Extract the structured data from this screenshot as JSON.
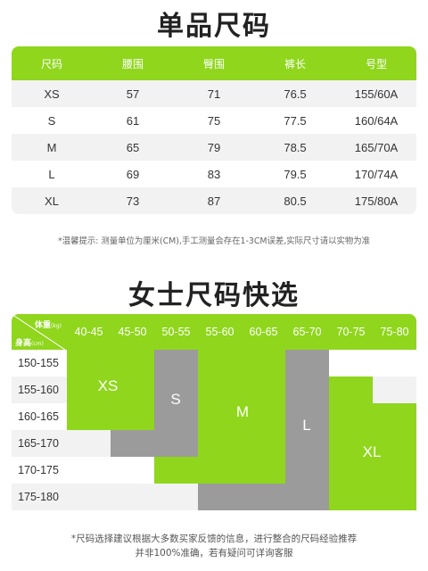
{
  "section1": {
    "title": "单品尺码",
    "headers": [
      "尺码",
      "腰围",
      "臀围",
      "裤长",
      "号型"
    ],
    "rows": [
      [
        "XS",
        "57",
        "71",
        "76.5",
        "155/60A"
      ],
      [
        "S",
        "61",
        "75",
        "77.5",
        "160/64A"
      ],
      [
        "M",
        "65",
        "79",
        "78.5",
        "165/70A"
      ],
      [
        "L",
        "69",
        "83",
        "79.5",
        "170/74A"
      ],
      [
        "XL",
        "73",
        "87",
        "80.5",
        "175/80A"
      ]
    ],
    "note": "*温馨提示: 测量单位为厘米(CM),手工测量会存在1-3CM误差,实际尺寸请以实物为准"
  },
  "section2": {
    "title": "女士尺码快选",
    "weight_label": "体重",
    "weight_unit": "(kg)",
    "height_label": "身高",
    "height_unit": "(cm)",
    "weights": [
      "40-45",
      "45-50",
      "50-55",
      "55-60",
      "60-65",
      "65-70",
      "70-75",
      "75-80"
    ],
    "heights": [
      "150-155",
      "155-160",
      "160-165",
      "165-170",
      "170-175",
      "175-180"
    ],
    "sizes": {
      "xs": "XS",
      "s": "S",
      "m": "M",
      "l": "L",
      "xl": "XL"
    },
    "note_line1": "*尺码选择建议根据大多数买家反馈的信息，进行整合的尺码经验推荐",
    "note_line2": "并非100%准确，若有疑问可详询客服"
  },
  "colors": {
    "accent_green": "#8fd61d",
    "block_gray": "#9b9b9b",
    "row_stripe": "#f2f2f2"
  }
}
